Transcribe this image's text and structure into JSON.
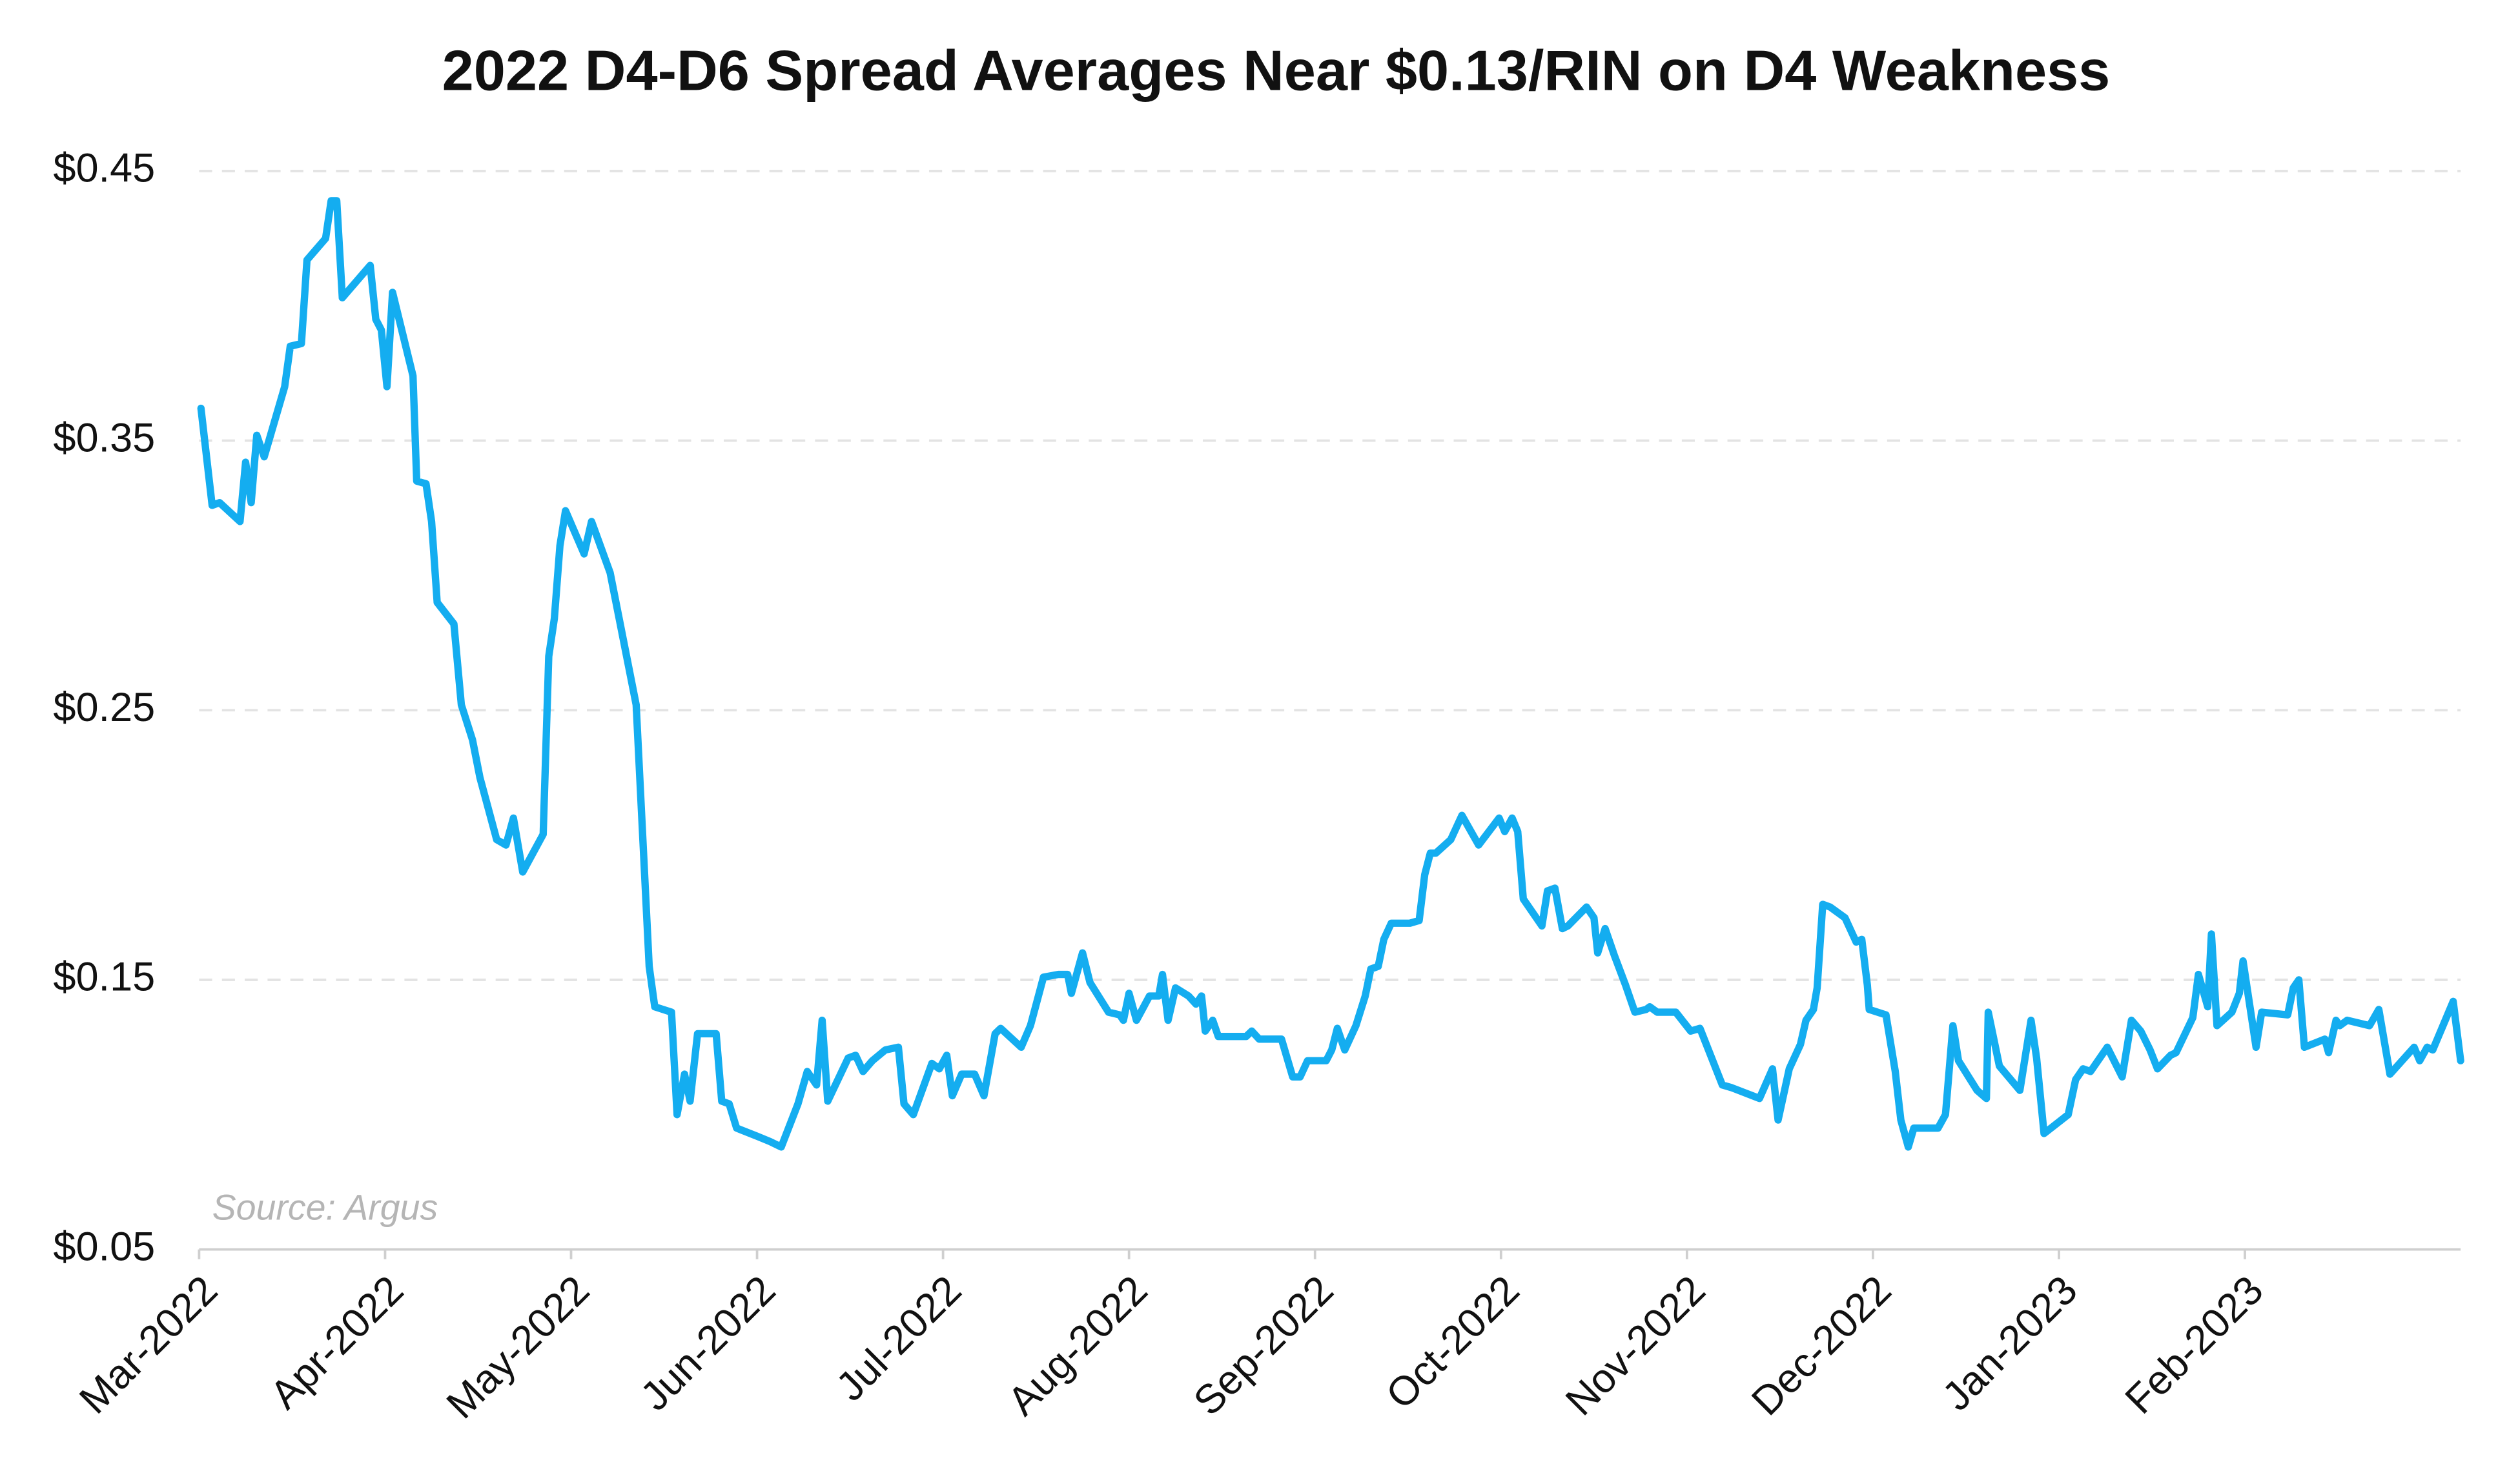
{
  "chart_data": {
    "type": "line",
    "title": "2022 D4-D6 Spread Averages Near $0.13/RIN on D4 Weakness",
    "annotation": "Source: Argus",
    "color": "#14adf0",
    "grid": true,
    "xlim": [
      0,
      12.16
    ],
    "xticks": [
      {
        "value": 0,
        "label": "Mar-2022"
      },
      {
        "value": 1,
        "label": "Apr-2022"
      },
      {
        "value": 2,
        "label": "May-2022"
      },
      {
        "value": 3,
        "label": "Jun-2022"
      },
      {
        "value": 4,
        "label": "Jul-2022"
      },
      {
        "value": 5,
        "label": "Aug-2022"
      },
      {
        "value": 6,
        "label": "Sep-2022"
      },
      {
        "value": 7,
        "label": "Oct-2022"
      },
      {
        "value": 8,
        "label": "Nov-2022"
      },
      {
        "value": 9,
        "label": "Dec-2022"
      },
      {
        "value": 10,
        "label": "Jan-2023"
      },
      {
        "value": 11,
        "label": "Feb-2023"
      }
    ],
    "ylim": [
      0.05,
      0.45
    ],
    "yticks": [
      {
        "value": 0.05,
        "label": "$0.05"
      },
      {
        "value": 0.15,
        "label": "$0.15"
      },
      {
        "value": 0.25,
        "label": "$0.25"
      },
      {
        "value": 0.35,
        "label": "$0.35"
      },
      {
        "value": 0.45,
        "label": "$0.45"
      }
    ],
    "x": [
      0.01,
      0.07,
      0.11,
      0.22,
      0.25,
      0.28,
      0.31,
      0.35,
      0.46,
      0.49,
      0.55,
      0.58,
      0.68,
      0.71,
      0.74,
      0.77,
      0.92,
      0.95,
      0.98,
      1.01,
      1.04,
      1.15,
      1.17,
      1.22,
      1.25,
      1.28,
      1.37,
      1.41,
      1.47,
      1.51,
      1.6,
      1.65,
      1.69,
      1.74,
      1.85,
      1.88,
      1.91,
      1.94,
      1.97,
      2.07,
      2.11,
      2.21,
      2.35,
      2.42,
      2.45,
      2.54,
      2.57,
      2.61,
      2.64,
      2.68,
      2.78,
      2.81,
      2.85,
      2.89,
      3.0,
      3.07,
      3.13,
      3.22,
      3.27,
      3.32,
      3.35,
      3.38,
      3.49,
      3.53,
      3.57,
      3.62,
      3.69,
      3.76,
      3.79,
      3.84,
      3.94,
      3.98,
      4.02,
      4.05,
      4.1,
      4.17,
      4.22,
      4.28,
      4.31,
      4.42,
      4.47,
      4.54,
      4.62,
      4.67,
      4.69,
      4.75,
      4.79,
      4.89,
      4.95,
      4.97,
      5.0,
      5.04,
      5.11,
      5.16,
      5.18,
      5.21,
      5.25,
      5.32,
      5.36,
      5.39,
      5.41,
      5.45,
      5.48,
      5.63,
      5.66,
      5.7,
      5.82,
      5.88,
      5.92,
      5.96,
      6.06,
      6.09,
      6.12,
      6.16,
      6.22,
      6.27,
      6.3,
      6.34,
      6.37,
      6.41,
      6.51,
      6.56,
      6.59,
      6.62,
      6.65,
      6.73,
      6.79,
      6.88,
      6.99,
      7.02,
      7.06,
      7.09,
      7.12,
      7.22,
      7.25,
      7.29,
      7.33,
      7.36,
      7.46,
      7.5,
      7.52,
      7.56,
      7.61,
      7.67,
      7.72,
      7.78,
      7.8,
      7.84,
      7.94,
      8.02,
      8.07,
      8.19,
      8.24,
      8.39,
      8.46,
      8.49,
      8.55,
      8.61,
      8.64,
      8.68,
      8.7,
      8.73,
      8.77,
      8.85,
      8.91,
      8.94,
      8.97,
      8.98,
      9.07,
      9.12,
      9.15,
      9.19,
      9.22,
      9.35,
      9.39,
      9.43,
      9.46,
      9.56,
      9.61,
      9.62,
      9.68,
      9.79,
      9.85,
      9.88,
      9.92,
      10.05,
      10.09,
      10.13,
      10.17,
      10.26,
      10.34,
      10.39,
      10.44,
      10.49,
      10.53,
      10.6,
      10.63,
      10.72,
      10.75,
      10.8,
      10.82,
      10.85,
      10.93,
      10.97,
      10.99,
      11.06,
      11.09,
      11.23,
      11.26,
      11.29,
      11.32,
      11.43,
      11.45,
      11.49,
      11.51,
      11.55,
      11.67,
      11.72,
      11.78,
      11.91,
      11.94,
      11.98,
      12.01,
      12.12,
      12.16
    ],
    "values": [
      0.362,
      0.326,
      0.327,
      0.32,
      0.342,
      0.327,
      0.352,
      0.344,
      0.37,
      0.385,
      0.386,
      0.417,
      0.425,
      0.439,
      0.439,
      0.403,
      0.415,
      0.395,
      0.391,
      0.37,
      0.405,
      0.374,
      0.335,
      0.334,
      0.32,
      0.29,
      0.282,
      0.252,
      0.239,
      0.225,
      0.202,
      0.2,
      0.21,
      0.19,
      0.204,
      0.27,
      0.284,
      0.311,
      0.324,
      0.308,
      0.32,
      0.301,
      0.252,
      0.155,
      0.14,
      0.138,
      0.1,
      0.115,
      0.105,
      0.13,
      0.13,
      0.105,
      0.104,
      0.095,
      0.092,
      0.09,
      0.088,
      0.104,
      0.116,
      0.111,
      0.135,
      0.105,
      0.121,
      0.122,
      0.116,
      0.12,
      0.124,
      0.125,
      0.104,
      0.1,
      0.119,
      0.117,
      0.122,
      0.107,
      0.115,
      0.115,
      0.107,
      0.13,
      0.132,
      0.125,
      0.133,
      0.151,
      0.152,
      0.152,
      0.145,
      0.16,
      0.149,
      0.138,
      0.137,
      0.135,
      0.145,
      0.135,
      0.144,
      0.144,
      0.152,
      0.135,
      0.147,
      0.144,
      0.141,
      0.144,
      0.131,
      0.135,
      0.129,
      0.129,
      0.131,
      0.128,
      0.128,
      0.114,
      0.114,
      0.12,
      0.12,
      0.124,
      0.132,
      0.124,
      0.133,
      0.144,
      0.154,
      0.155,
      0.165,
      0.171,
      0.171,
      0.172,
      0.189,
      0.197,
      0.197,
      0.202,
      0.211,
      0.2,
      0.21,
      0.205,
      0.21,
      0.205,
      0.18,
      0.17,
      0.183,
      0.184,
      0.169,
      0.17,
      0.177,
      0.173,
      0.16,
      0.169,
      0.159,
      0.148,
      0.138,
      0.139,
      0.14,
      0.138,
      0.138,
      0.131,
      0.132,
      0.111,
      0.11,
      0.106,
      0.117,
      0.098,
      0.117,
      0.126,
      0.135,
      0.139,
      0.147,
      0.178,
      0.177,
      0.173,
      0.164,
      0.165,
      0.148,
      0.139,
      0.137,
      0.116,
      0.098,
      0.088,
      0.095,
      0.095,
      0.1,
      0.133,
      0.12,
      0.109,
      0.106,
      0.138,
      0.118,
      0.109,
      0.135,
      0.121,
      0.093,
      0.1,
      0.113,
      0.117,
      0.116,
      0.125,
      0.114,
      0.135,
      0.131,
      0.124,
      0.117,
      0.122,
      0.123,
      0.136,
      0.152,
      0.14,
      0.167,
      0.133,
      0.138,
      0.145,
      0.157,
      0.125,
      0.138,
      0.137,
      0.147,
      0.15,
      0.125,
      0.128,
      0.123,
      0.135,
      0.133,
      0.135,
      0.133,
      0.139,
      0.115,
      0.125,
      0.12,
      0.125,
      0.124,
      0.142,
      0.12
    ]
  }
}
